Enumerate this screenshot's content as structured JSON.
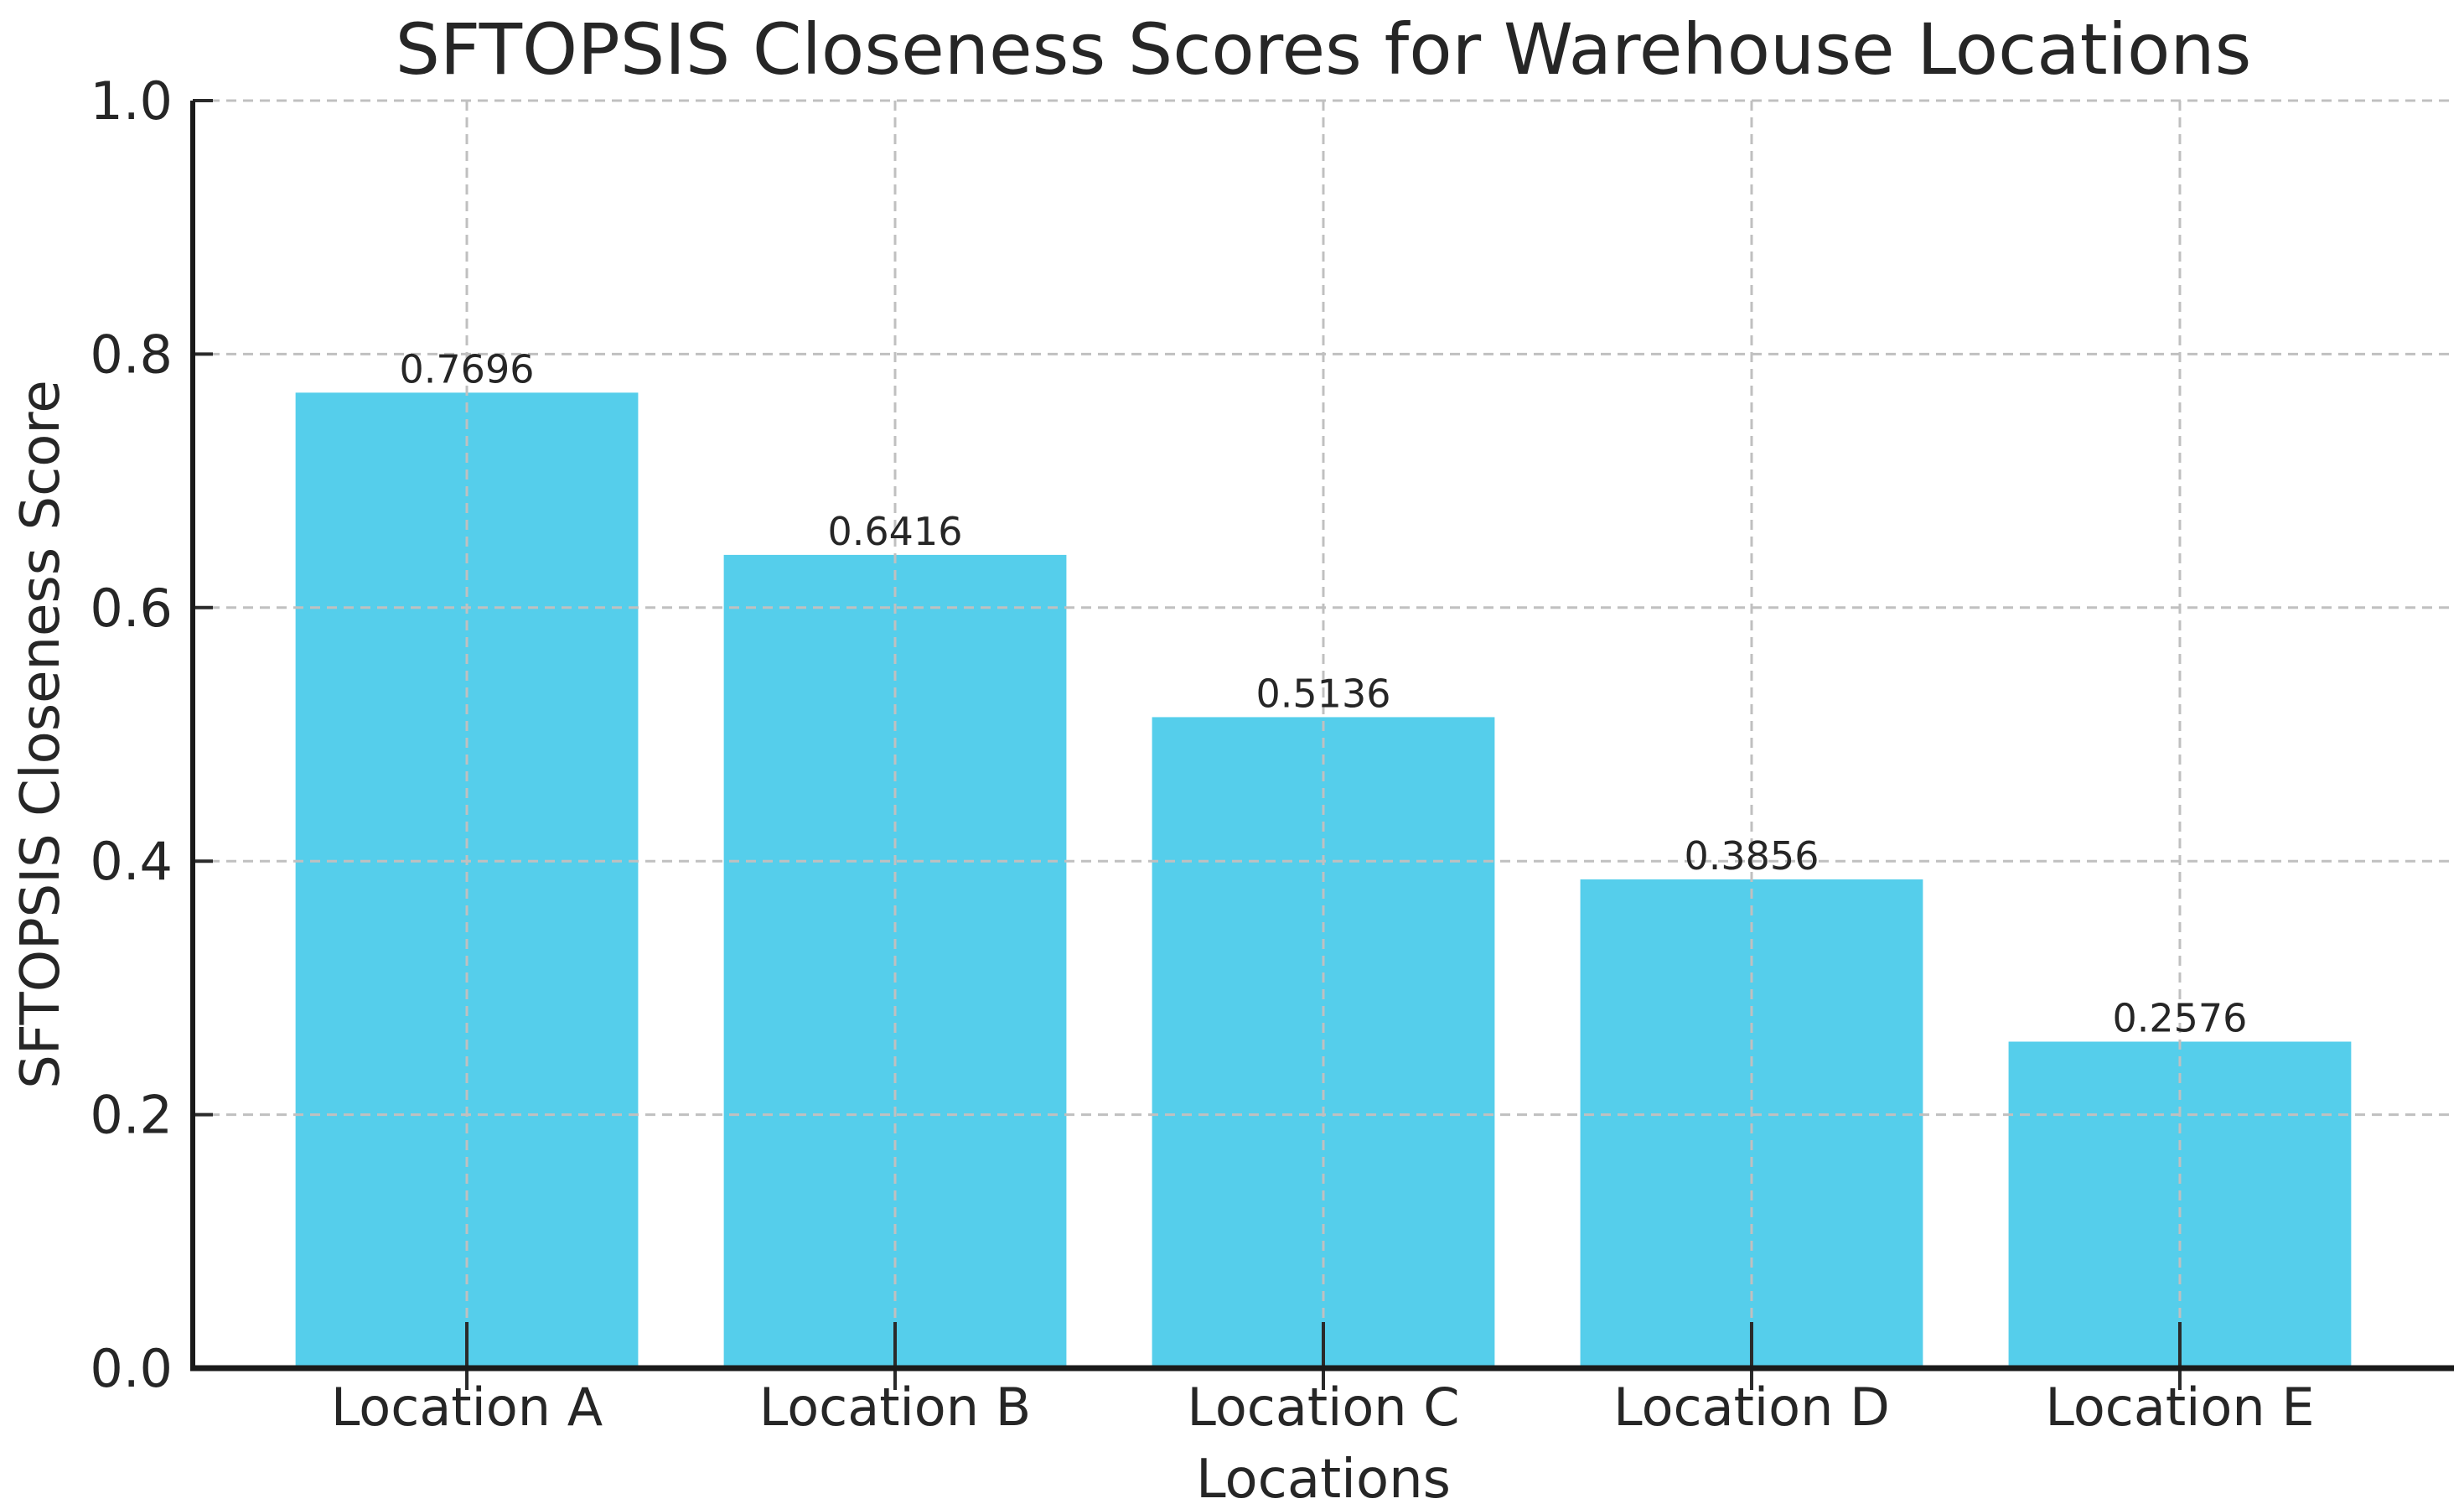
{
  "figure": {
    "background": "#ffffff"
  },
  "chart_data": {
    "type": "bar",
    "title": "SFTOPSIS Closeness Scores for Warehouse Locations",
    "xlabel": "Locations",
    "ylabel": "SFTOPSIS Closeness Score",
    "categories": [
      "Location A",
      "Location B",
      "Location C",
      "Location D",
      "Location E"
    ],
    "values": [
      0.7696,
      0.6416,
      0.5136,
      0.3856,
      0.2576
    ],
    "bar_labels": [
      "0.7696",
      "0.6416",
      "0.5136",
      "0.3856",
      "0.2576"
    ],
    "ylim": [
      0.0,
      1.0
    ],
    "yticks": [
      0.0,
      0.2,
      0.4,
      0.6,
      0.8,
      1.0
    ],
    "ytick_labels": [
      "0.0",
      "0.2",
      "0.4",
      "0.6",
      "0.8",
      "1.0"
    ],
    "grid": "dashed, horizontal and vertical, drawn above bars",
    "legend": "none",
    "colors": {
      "bar": "#55CEEB",
      "grid": "#c0c0c0",
      "spine": "#1a1a1a",
      "tick": "#2a2a2a",
      "text": "#262626"
    }
  }
}
